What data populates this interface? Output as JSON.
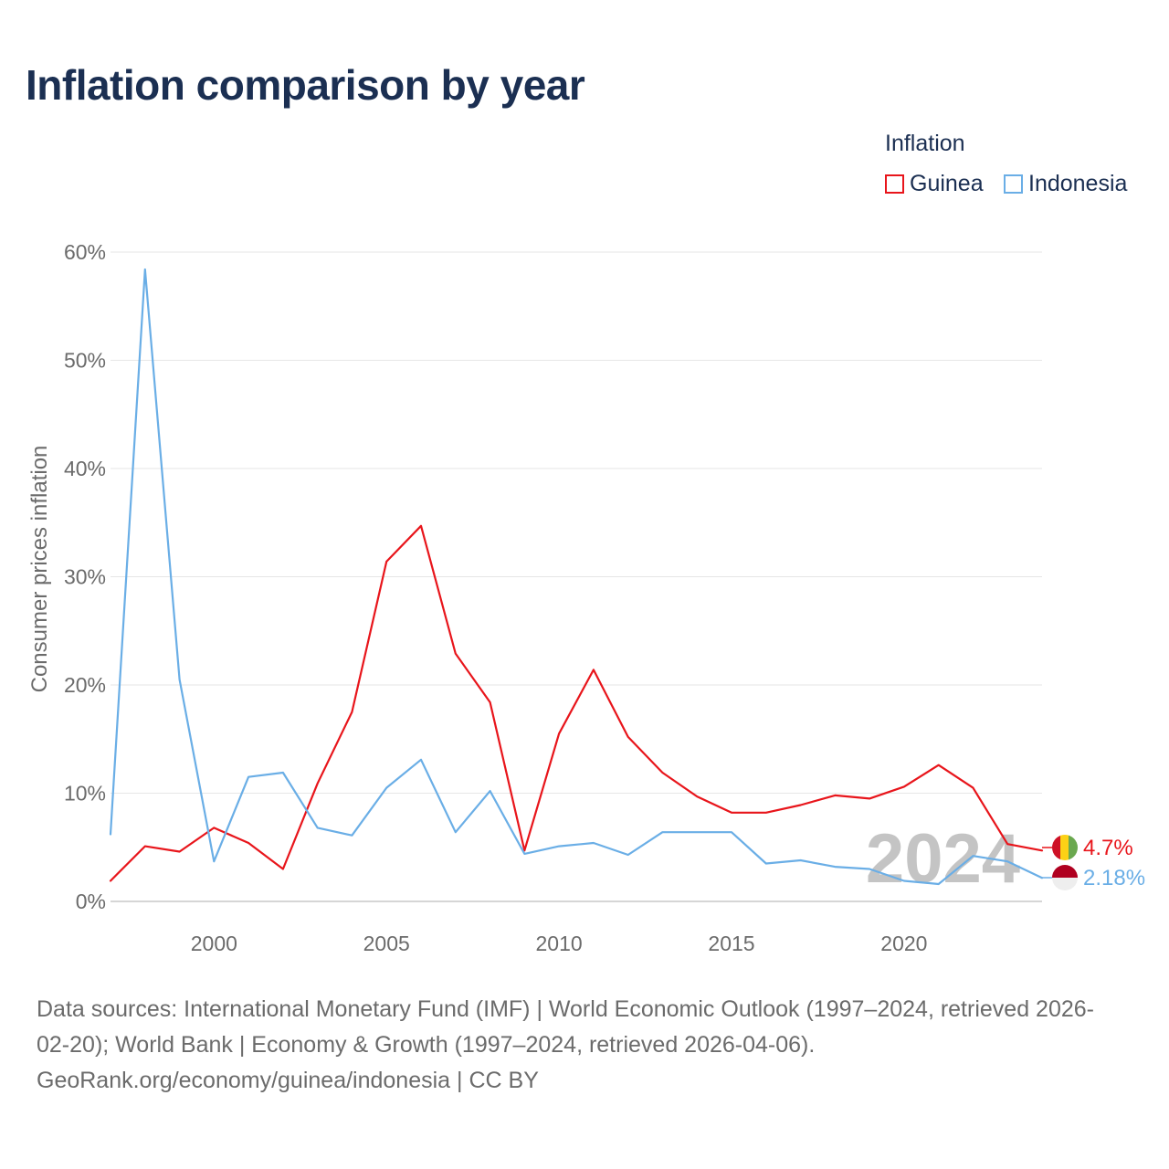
{
  "title": "Inflation comparison by year",
  "legend": {
    "title": "Inflation",
    "items": [
      {
        "label": "Guinea",
        "color": "#e8151b"
      },
      {
        "label": "Indonesia",
        "color": "#6aaee6"
      }
    ]
  },
  "current_year_label": "2024",
  "end_labels": {
    "guinea": "4.7%",
    "indonesia": "2.18%"
  },
  "source": {
    "line1": "Data sources: International Monetary Fund (IMF) | World Economic Outlook (1997–2024, retrieved 2026-",
    "line2": "02-20); World Bank | Economy & Growth (1997–2024, retrieved 2026-04-06).",
    "line3": "GeoRank.org/economy/guinea/indonesia | CC BY"
  },
  "chart_data": {
    "type": "line",
    "ylabel": "Consumer prices inflation",
    "xlabel": "",
    "ylim": [
      0,
      60
    ],
    "xlim": [
      1997,
      2024
    ],
    "yticks": [
      0,
      10,
      20,
      30,
      40,
      50,
      60
    ],
    "ytick_labels": [
      "0%",
      "10%",
      "20%",
      "30%",
      "40%",
      "50%",
      "60%"
    ],
    "xticks": [
      2000,
      2005,
      2010,
      2015,
      2020
    ],
    "xtick_labels": [
      "2000",
      "2005",
      "2010",
      "2015",
      "2020"
    ],
    "grid": true,
    "x": [
      1997,
      1998,
      1999,
      2000,
      2001,
      2002,
      2003,
      2004,
      2005,
      2006,
      2007,
      2008,
      2009,
      2010,
      2011,
      2012,
      2013,
      2014,
      2015,
      2016,
      2017,
      2018,
      2019,
      2020,
      2021,
      2022,
      2023,
      2024
    ],
    "series": [
      {
        "name": "Guinea",
        "color": "#e8151b",
        "values": [
          1.9,
          5.1,
          4.6,
          6.8,
          5.4,
          3.0,
          10.9,
          17.5,
          31.4,
          34.7,
          22.9,
          18.4,
          4.7,
          15.5,
          21.4,
          15.2,
          11.9,
          9.7,
          8.2,
          8.2,
          8.9,
          9.8,
          9.5,
          10.6,
          12.6,
          10.5,
          5.3,
          4.7
        ]
      },
      {
        "name": "Indonesia",
        "color": "#6aaee6",
        "values": [
          6.2,
          58.4,
          20.5,
          3.7,
          11.5,
          11.9,
          6.8,
          6.1,
          10.5,
          13.1,
          6.4,
          10.2,
          4.4,
          5.1,
          5.4,
          4.3,
          6.4,
          6.4,
          6.4,
          3.5,
          3.8,
          3.2,
          3.0,
          1.9,
          1.6,
          4.2,
          3.7,
          2.18
        ]
      }
    ]
  }
}
